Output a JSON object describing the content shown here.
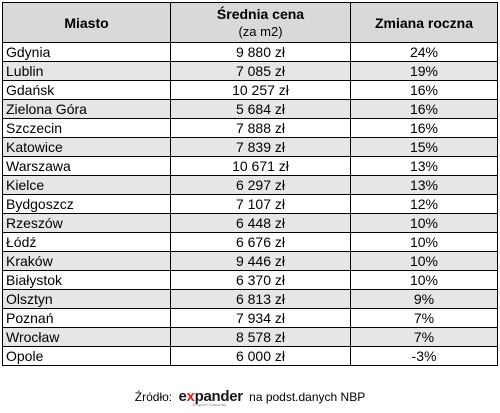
{
  "headers": {
    "city": "Miasto",
    "price_main": "Średnia cena",
    "price_sub": "(za m2)",
    "change": "Zmiana roczna"
  },
  "rows": [
    {
      "city": "Gdynia",
      "price": "9 880 zł",
      "change": "24%"
    },
    {
      "city": "Lublin",
      "price": "7 085 zł",
      "change": "19%"
    },
    {
      "city": "Gdańsk",
      "price": "10 257 zł",
      "change": "16%"
    },
    {
      "city": "Zielona Góra",
      "price": "5 684 zł",
      "change": "16%"
    },
    {
      "city": "Szczecin",
      "price": "7 888 zł",
      "change": "16%"
    },
    {
      "city": "Katowice",
      "price": "7 839 zł",
      "change": "15%"
    },
    {
      "city": "Warszawa",
      "price": "10 671 zł",
      "change": "13%"
    },
    {
      "city": "Kielce",
      "price": "6 297 zł",
      "change": "13%"
    },
    {
      "city": "Bydgoszcz",
      "price": "7 107 zł",
      "change": "12%"
    },
    {
      "city": "Rzeszów",
      "price": "6 448 zł",
      "change": "10%"
    },
    {
      "city": "Łódź",
      "price": "6 676 zł",
      "change": "10%"
    },
    {
      "city": "Kraków",
      "price": "9 446 zł",
      "change": "10%"
    },
    {
      "city": "Białystok",
      "price": "6 370 zł",
      "change": "10%"
    },
    {
      "city": "Olsztyn",
      "price": "6 813 zł",
      "change": "9%"
    },
    {
      "city": "Poznań",
      "price": "7 934 zł",
      "change": "7%"
    },
    {
      "city": "Wrocław",
      "price": "8 578 zł",
      "change": "7%"
    },
    {
      "city": "Opole",
      "price": "6 000 zł",
      "change": "-3%"
    }
  ],
  "source": {
    "prefix": "Źródło:",
    "logo_e": "e",
    "logo_x": "x",
    "logo_rest": "pander",
    "logo_tagline": "Ekspert Finansowy",
    "suffix": "na podst.danych NBP"
  },
  "colors": {
    "header_bg": "#d9d9d9",
    "stripe_bg": "#e6e6e6",
    "logo_accent": "#e32119"
  }
}
